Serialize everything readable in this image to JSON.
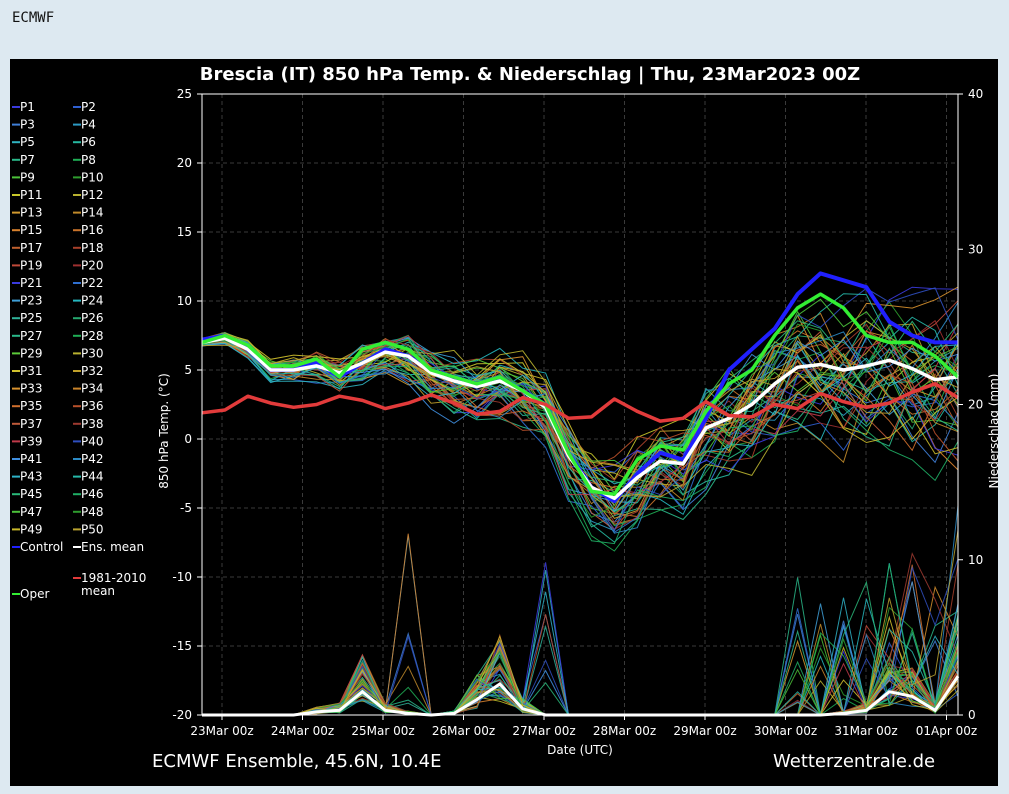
{
  "page": {
    "header": "ECMWF"
  },
  "chart_data": {
    "type": "line",
    "title": "Brescia  (IT)  850 hPa Temp. & Niederschlag | Thu, 23Mar2023 00Z",
    "xlabel": "Date (UTC)",
    "ylabel": "850 hPa Temp. (°C)",
    "y2label": "Niederschlag (mm)",
    "footer_left": "ECMWF Ensemble, 45.6N, 10.4E",
    "footer_right": "Wetterzentrale.de",
    "ylim": [
      -20,
      25
    ],
    "yticks": [
      "25",
      "20",
      "15",
      "10",
      "5",
      "0",
      "-5",
      "-10",
      "-15",
      "-20"
    ],
    "y2lim": [
      0,
      40
    ],
    "y2ticks": [
      "40",
      "30",
      "20",
      "10",
      "0"
    ],
    "xticks": [
      "23Mar 00z",
      "24Mar 00z",
      "25Mar 00z",
      "26Mar 00z",
      "27Mar 00z",
      "28Mar 00z",
      "29Mar 00z",
      "30Mar 00z",
      "31Mar 00z",
      "01Apr 00z"
    ],
    "grid": true,
    "legend_position": "left",
    "legend": [
      {
        "label": "P1",
        "color": "#3b3bdf"
      },
      {
        "label": "P2",
        "color": "#2f5fd0"
      },
      {
        "label": "P3",
        "color": "#3f7fd8"
      },
      {
        "label": "P4",
        "color": "#2c9ac4"
      },
      {
        "label": "P5",
        "color": "#2fb3c0"
      },
      {
        "label": "P6",
        "color": "#26b8a0"
      },
      {
        "label": "P7",
        "color": "#2ab98a"
      },
      {
        "label": "P8",
        "color": "#1fae55"
      },
      {
        "label": "P9",
        "color": "#4cc23a"
      },
      {
        "label": "P10",
        "color": "#2e9c2e"
      },
      {
        "label": "P11",
        "color": "#c8c82a"
      },
      {
        "label": "P12",
        "color": "#b9b230"
      },
      {
        "label": "P13",
        "color": "#d29a2e"
      },
      {
        "label": "P14",
        "color": "#c08a2a"
      },
      {
        "label": "P15",
        "color": "#d9822e"
      },
      {
        "label": "P16",
        "color": "#c9732a"
      },
      {
        "label": "P17",
        "color": "#c0602e"
      },
      {
        "label": "P18",
        "color": "#a8402a"
      },
      {
        "label": "P19",
        "color": "#c04a3a"
      },
      {
        "label": "P20",
        "color": "#9e3030"
      },
      {
        "label": "P21",
        "color": "#3b3bdf"
      },
      {
        "label": "P22",
        "color": "#2f6fd0"
      },
      {
        "label": "P23",
        "color": "#3fa0d8"
      },
      {
        "label": "P24",
        "color": "#26b8c0"
      },
      {
        "label": "P25",
        "color": "#2fb39a"
      },
      {
        "label": "P26",
        "color": "#26a870"
      },
      {
        "label": "P27",
        "color": "#2ab98a"
      },
      {
        "label": "P28",
        "color": "#1fae55"
      },
      {
        "label": "P29",
        "color": "#5ccc3a"
      },
      {
        "label": "P30",
        "color": "#b9b230"
      },
      {
        "label": "P31",
        "color": "#d2c22e"
      },
      {
        "label": "P32",
        "color": "#c0a02a"
      },
      {
        "label": "P33",
        "color": "#d9922e"
      },
      {
        "label": "P34",
        "color": "#c9832a"
      },
      {
        "label": "P35",
        "color": "#d0702e"
      },
      {
        "label": "P36",
        "color": "#b8502a"
      },
      {
        "label": "P37",
        "color": "#c05a3a"
      },
      {
        "label": "P38",
        "color": "#9e3a30"
      },
      {
        "label": "P39",
        "color": "#c03a4a"
      },
      {
        "label": "P40",
        "color": "#2f4fc0"
      },
      {
        "label": "P41",
        "color": "#3f8fe0"
      },
      {
        "label": "P42",
        "color": "#2c8ac4"
      },
      {
        "label": "P43",
        "color": "#2fb3c8"
      },
      {
        "label": "P44",
        "color": "#26b8a8"
      },
      {
        "label": "P45",
        "color": "#2ab97a"
      },
      {
        "label": "P46",
        "color": "#1fae65"
      },
      {
        "label": "P47",
        "color": "#4cc23a"
      },
      {
        "label": "P48",
        "color": "#2e9c2e"
      },
      {
        "label": "P49",
        "color": "#c8b82a"
      },
      {
        "label": "P50",
        "color": "#b9a230"
      },
      {
        "label": "Control",
        "color": "#2020ff"
      },
      {
        "label": "Ens. mean",
        "color": "#ffffff"
      },
      {
        "label": "Oper",
        "color": "#33ee33"
      },
      {
        "label": "1981-2010 mean",
        "color": "#e23b3b"
      }
    ],
    "series": [
      {
        "name": "Control",
        "color": "#2020ff",
        "values": [
          7.2,
          7.5,
          6.5,
          5.0,
          5.0,
          5.5,
          4.5,
          5.5,
          6.5,
          6.0,
          5.0,
          4.5,
          4.0,
          4.5,
          3.5,
          2.5,
          -1.0,
          -3.5,
          -4.5,
          -2.5,
          -1.0,
          -1.5,
          1.5,
          5.0,
          6.5,
          8.0,
          10.5,
          12.0,
          11.5,
          11.0,
          8.5,
          7.5,
          7.0,
          7.0
        ]
      },
      {
        "name": "Ens. mean",
        "color": "#ffffff",
        "values": [
          7.0,
          7.3,
          6.5,
          5.0,
          5.0,
          5.3,
          4.8,
          5.5,
          6.3,
          6.0,
          4.8,
          4.2,
          3.8,
          4.2,
          3.5,
          2.3,
          -1.2,
          -3.5,
          -4.3,
          -2.8,
          -1.6,
          -1.8,
          0.8,
          1.5,
          2.5,
          4.0,
          5.2,
          5.4,
          5.0,
          5.3,
          5.7,
          5.1,
          4.3,
          4.5
        ]
      },
      {
        "name": "Oper",
        "color": "#33ee33",
        "values": [
          7.0,
          7.5,
          6.8,
          5.3,
          5.3,
          5.8,
          4.5,
          6.5,
          7.0,
          6.5,
          5.0,
          4.5,
          4.0,
          4.5,
          3.5,
          2.5,
          -1.0,
          -3.8,
          -4.0,
          -1.5,
          -0.5,
          -0.8,
          2.0,
          4.0,
          5.0,
          7.5,
          9.5,
          10.5,
          9.5,
          7.5,
          7.0,
          7.0,
          6.0,
          4.5
        ]
      },
      {
        "name": "1981-2010 mean",
        "color": "#e23b3b",
        "values": [
          1.9,
          2.1,
          3.1,
          2.6,
          2.3,
          2.5,
          3.1,
          2.8,
          2.2,
          2.6,
          3.2,
          2.6,
          1.8,
          2.0,
          3.0,
          2.5,
          1.5,
          1.6,
          2.9,
          2.0,
          1.3,
          1.5,
          2.7,
          1.7,
          1.6,
          2.5,
          2.2,
          3.3,
          2.7,
          2.3,
          2.6,
          3.4,
          4.0,
          3.0
        ]
      }
    ],
    "precip_series": [
      {
        "name": "Ens. mean",
        "color": "#ffffff",
        "values": [
          0,
          0,
          0,
          0,
          0,
          0.2,
          0.3,
          1.5,
          0.3,
          0.1,
          0,
          0.1,
          1.0,
          2.0,
          0.4,
          0,
          0,
          0,
          0,
          0,
          0,
          0,
          0,
          0,
          0,
          0,
          0,
          0,
          0.1,
          0.3,
          1.5,
          1.2,
          0.3,
          2.5
        ]
      }
    ]
  }
}
